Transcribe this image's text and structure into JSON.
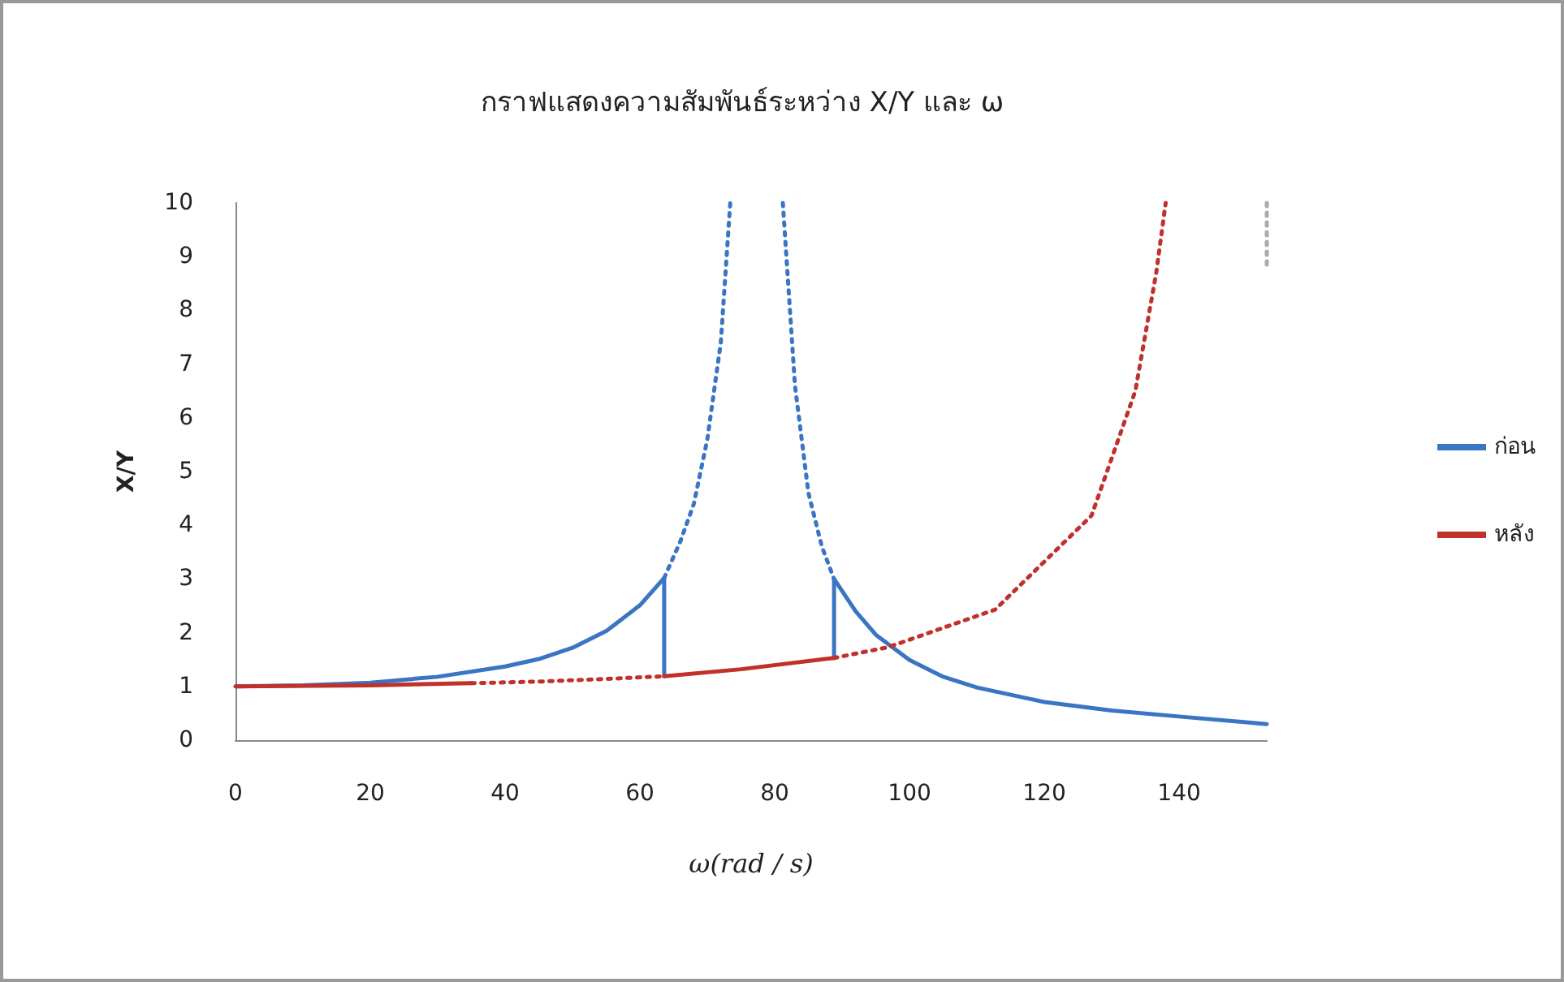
{
  "chart_data": {
    "type": "line",
    "title": "กราฟแสดงความสัมพันธ์ระหว่าง X/Y และ ω",
    "xlabel": "ω(rad / s)",
    "ylabel": "X/Y",
    "xlim": [
      0,
      153
    ],
    "xticks": [
      0,
      20,
      40,
      60,
      80,
      100,
      120,
      140
    ],
    "ylim": [
      0,
      10
    ],
    "yticks": [
      0,
      1,
      2,
      3,
      4,
      5,
      6,
      7,
      8,
      9,
      10
    ],
    "grid": false,
    "legend": "right",
    "marker": "none",
    "series": [
      {
        "name": "ก่อน",
        "color": "#3a75c4",
        "line_style": "solid",
        "x": [
          0,
          10,
          20,
          30,
          40,
          45,
          50,
          55,
          60,
          63.6
        ],
        "values": [
          1,
          1.02,
          1.07,
          1.18,
          1.37,
          1.51,
          1.72,
          2.03,
          2.51,
          3.02
        ]
      },
      {
        "color": "#3a75c4",
        "line_style": "dotted",
        "x": [
          63.6,
          66,
          68,
          70,
          72,
          73.4
        ],
        "values": [
          3.02,
          3.7,
          4.4,
          5.6,
          7.4,
          10
        ]
      },
      {
        "color": "#3a75c4",
        "line_style": "dotted",
        "x": [
          81.2,
          83,
          85,
          87,
          88.8
        ],
        "values": [
          10,
          6.6,
          4.6,
          3.6,
          3
        ]
      },
      {
        "color": "#3a75c4",
        "line_style": "solid",
        "x": [
          88.8,
          92,
          95,
          100,
          105,
          110,
          120,
          130,
          140,
          153
        ],
        "values": [
          3,
          2.4,
          1.96,
          1.49,
          1.18,
          0.98,
          0.71,
          0.55,
          0.44,
          0.3
        ]
      },
      {
        "color": "#3a75c4",
        "line_style": "solid",
        "x": [
          63.6,
          63.6
        ],
        "values": [
          3.02,
          1.19
        ]
      },
      {
        "color": "#3a75c4",
        "line_style": "solid",
        "x": [
          88.8,
          88.8
        ],
        "values": [
          3,
          1.53
        ]
      },
      {
        "name": "หลัง",
        "color": "#c0312b",
        "line_style": "solid",
        "x": [
          0,
          20,
          35
        ],
        "values": [
          1,
          1.02,
          1.06
        ]
      },
      {
        "color": "#c0312b",
        "line_style": "dotted",
        "x": [
          35,
          45,
          55,
          63.6
        ],
        "values": [
          1.06,
          1.09,
          1.14,
          1.19
        ]
      },
      {
        "color": "#c0312b",
        "line_style": "solid",
        "x": [
          63.6,
          75,
          88.8
        ],
        "values": [
          1.19,
          1.32,
          1.53
        ]
      },
      {
        "color": "#c0312b",
        "line_style": "dotted",
        "x": [
          88.8,
          96.8,
          112.7,
          127,
          133.5,
          136.6,
          138
        ],
        "values": [
          1.53,
          1.73,
          2.43,
          4.18,
          6.5,
          8.7,
          10
        ]
      },
      {
        "color": "#aaaaaa",
        "line_style": "dotted",
        "x": [
          153,
          153
        ],
        "values": [
          10,
          8.85
        ]
      }
    ]
  }
}
